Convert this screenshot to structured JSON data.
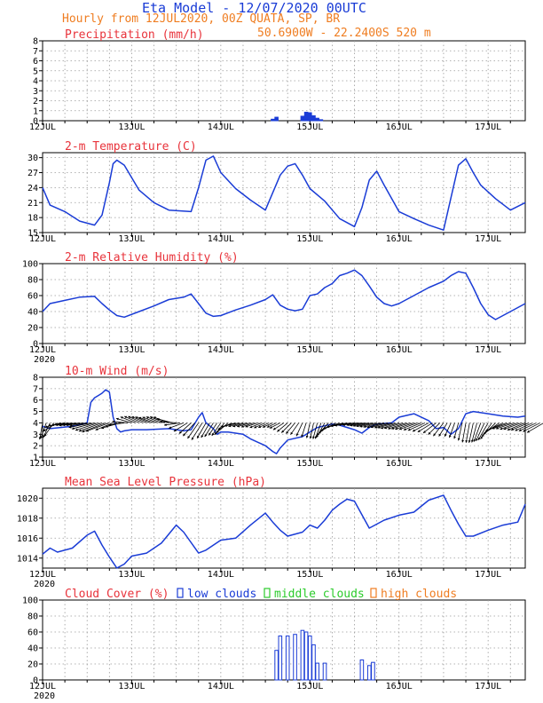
{
  "header": {
    "title": "Eta Model - 12/07/2020 00UTC",
    "subtitle": "Hourly from 12JUL2020, 00Z  QUATA, SP, BR",
    "location": "50.6900W - 22.2400S    520  m"
  },
  "colors": {
    "series": "#1a3cd6",
    "panel_title": "#e8333b",
    "header_orange": "#ef7d21",
    "grid": "#9a9a9a",
    "low_clouds": "#1a3cd6",
    "middle_clouds": "#2bcb2b",
    "high_clouds": "#ef7d21",
    "wind_barb": "#000000"
  },
  "x_axis": {
    "range_hours": [
      0,
      130
    ],
    "tick_hours": [
      0,
      24,
      48,
      72,
      96,
      120
    ],
    "tick_labels": [
      "12JUL",
      "13JUL",
      "14JUL",
      "15JUL",
      "16JUL",
      "17JUL"
    ],
    "year_label": "2020"
  },
  "chart_data": [
    {
      "id": "precip",
      "type": "bar",
      "title": "Precipitation (mm/h)",
      "xlabel": "",
      "ylabel": "Precipitation (mm/h)",
      "ylim": [
        0,
        8
      ],
      "yticks": [
        0,
        1,
        2,
        3,
        4,
        5,
        6,
        7,
        8
      ],
      "year_label": false,
      "series": [
        {
          "name": "precipitation",
          "x": [
            62,
            63,
            70,
            71,
            72,
            73,
            74,
            75
          ],
          "values": [
            0.15,
            0.35,
            0.45,
            0.85,
            0.8,
            0.5,
            0.25,
            0.1
          ]
        }
      ]
    },
    {
      "id": "temp",
      "type": "line",
      "title": "2-m Temperature (C)",
      "ylabel": "2-m Temperature (C)",
      "ylim": [
        15,
        31
      ],
      "yticks": [
        15,
        18,
        21,
        24,
        27,
        30
      ],
      "year_label": false,
      "series": [
        {
          "name": "2-m temperature",
          "x": [
            0,
            2,
            6,
            10,
            14,
            16,
            18,
            19,
            20,
            22,
            26,
            30,
            34,
            40,
            42,
            44,
            46,
            48,
            52,
            56,
            60,
            64,
            66,
            68,
            70,
            72,
            76,
            80,
            84,
            86,
            88,
            90,
            92,
            96,
            100,
            104,
            108,
            110,
            112,
            114,
            116,
            118,
            122,
            126,
            130
          ],
          "values": [
            24.0,
            20.5,
            19.2,
            17.3,
            16.5,
            18.5,
            25.0,
            28.8,
            29.5,
            28.5,
            23.5,
            21.0,
            19.5,
            19.2,
            24.0,
            29.5,
            30.3,
            27.0,
            23.8,
            21.5,
            19.5,
            26.5,
            28.3,
            28.8,
            26.5,
            23.8,
            21.3,
            17.8,
            16.2,
            20.0,
            25.5,
            27.3,
            24.5,
            19.2,
            17.8,
            16.5,
            15.5,
            22.0,
            28.5,
            29.8,
            27.0,
            24.5,
            21.8,
            19.5,
            21.0
          ]
        }
      ]
    },
    {
      "id": "rh",
      "type": "line",
      "title": "2-m Relative Humidity (%)",
      "ylabel": "2-m Relative Humidity (%)",
      "ylim": [
        0,
        100
      ],
      "yticks": [
        0,
        20,
        40,
        60,
        80,
        100
      ],
      "year_label": true,
      "series": [
        {
          "name": "2-m relative humidity",
          "x": [
            0,
            2,
            6,
            10,
            14,
            16,
            18,
            20,
            22,
            26,
            30,
            34,
            38,
            40,
            42,
            44,
            46,
            48,
            52,
            56,
            60,
            62,
            64,
            66,
            68,
            70,
            72,
            74,
            76,
            78,
            80,
            82,
            84,
            86,
            88,
            90,
            92,
            94,
            96,
            100,
            104,
            108,
            110,
            112,
            114,
            116,
            118,
            120,
            122,
            126,
            130
          ],
          "values": [
            40,
            50,
            54,
            58,
            59,
            50,
            42,
            35,
            33,
            40,
            47,
            55,
            58,
            62,
            50,
            38,
            34,
            35,
            42,
            48,
            55,
            61,
            48,
            43,
            41,
            43,
            60,
            62,
            70,
            75,
            85,
            88,
            92,
            85,
            72,
            58,
            50,
            47,
            50,
            60,
            70,
            78,
            85,
            90,
            88,
            70,
            50,
            36,
            30,
            40,
            50
          ]
        }
      ]
    },
    {
      "id": "wind",
      "type": "line",
      "title": "10-m Wind (m/s)",
      "ylabel": "10-m Wind (m/s)",
      "ylim": [
        1,
        8
      ],
      "yticks": [
        1,
        2,
        3,
        4,
        5,
        6,
        7,
        8
      ],
      "year_label": false,
      "barb_heading_deg": [
        190,
        200,
        205,
        215,
        240,
        255,
        260,
        262,
        262,
        261,
        262,
        262,
        260,
        258,
        255,
        252,
        250,
        249,
        250,
        248,
        250,
        255,
        262,
        275,
        286,
        292,
        294,
        294,
        293,
        292,
        290,
        291,
        292,
        292,
        291,
        285,
        275,
        262,
        250,
        238,
        228,
        222,
        215,
        212,
        210,
        210,
        212,
        214,
        215,
        220,
        230,
        245,
        255,
        258,
        256,
        255,
        254,
        252,
        252,
        248,
        246,
        246,
        246,
        245,
        243,
        237,
        230,
        225,
        220,
        215,
        205,
        198,
        192,
        192,
        195,
        200,
        210,
        222,
        232,
        242,
        250,
        255,
        258,
        260,
        262,
        262,
        261,
        260,
        259,
        258,
        257,
        256,
        255,
        255,
        254,
        254,
        253,
        253,
        252,
        252,
        251,
        250,
        248,
        246,
        242,
        238,
        232,
        225,
        218,
        212,
        205,
        200,
        195,
        192,
        190,
        190,
        192,
        195,
        200,
        205,
        210,
        215,
        225,
        235,
        245,
        250,
        252,
        252,
        250,
        250,
        248,
        248,
        246,
        245,
        243,
        240
      ],
      "series": [
        {
          "name": "10-m wind speed",
          "x": [
            0,
            2,
            8,
            12,
            13,
            14,
            15,
            16,
            17,
            18,
            19,
            20,
            21,
            22,
            24,
            28,
            34,
            38,
            40,
            42,
            43,
            44,
            46,
            47,
            48,
            50,
            54,
            56,
            58,
            60,
            62,
            63,
            64,
            66,
            70,
            72,
            74,
            78,
            80,
            84,
            86,
            88,
            90,
            94,
            96,
            100,
            104,
            106,
            108,
            110,
            112,
            114,
            116,
            120,
            124,
            128,
            130
          ],
          "values": [
            3.7,
            3.5,
            3.7,
            4.0,
            5.8,
            6.2,
            6.4,
            6.6,
            6.9,
            6.7,
            4.5,
            3.5,
            3.2,
            3.3,
            3.4,
            3.4,
            3.5,
            3.3,
            3.4,
            4.5,
            4.9,
            4.0,
            3.5,
            3.0,
            3.2,
            3.2,
            3.0,
            2.6,
            2.3,
            2.0,
            1.5,
            1.3,
            1.8,
            2.5,
            2.8,
            3.2,
            3.6,
            3.9,
            3.8,
            3.4,
            3.1,
            3.6,
            3.9,
            4.0,
            4.5,
            4.8,
            4.2,
            3.5,
            3.6,
            3.0,
            3.5,
            4.8,
            5.0,
            4.8,
            4.6,
            4.5,
            4.6
          ]
        }
      ]
    },
    {
      "id": "mslp",
      "type": "line",
      "title": "Mean Sea Level Pressure (hPa)",
      "ylabel": "Mean Sea Level Pressure (hPa)",
      "ylim": [
        1013,
        1021
      ],
      "yticks": [
        1014,
        1016,
        1018,
        1020
      ],
      "year_label": true,
      "series": [
        {
          "name": "mean sea level pressure",
          "x": [
            0,
            2,
            4,
            8,
            12,
            14,
            16,
            18,
            20,
            22,
            24,
            28,
            32,
            36,
            38,
            42,
            44,
            48,
            52,
            56,
            60,
            62,
            64,
            66,
            70,
            72,
            74,
            76,
            78,
            80,
            82,
            84,
            88,
            92,
            96,
            100,
            104,
            108,
            110,
            112,
            114,
            116,
            120,
            124,
            128,
            130
          ],
          "values": [
            1014.4,
            1015.0,
            1014.6,
            1015.0,
            1016.3,
            1016.7,
            1015.3,
            1014.1,
            1013.0,
            1013.4,
            1014.2,
            1014.5,
            1015.5,
            1017.3,
            1016.6,
            1014.5,
            1014.8,
            1015.8,
            1016.0,
            1017.3,
            1018.5,
            1017.6,
            1016.8,
            1016.2,
            1016.6,
            1017.3,
            1017.0,
            1017.8,
            1018.8,
            1019.4,
            1019.9,
            1019.7,
            1017.0,
            1017.8,
            1018.3,
            1018.6,
            1019.8,
            1020.3,
            1018.8,
            1017.4,
            1016.2,
            1016.2,
            1016.8,
            1017.3,
            1017.6,
            1019.4
          ]
        }
      ]
    },
    {
      "id": "cloud",
      "type": "bar",
      "title": "Cloud Cover (%)",
      "legend": [
        "low clouds",
        "middle clouds",
        "high clouds"
      ],
      "ylabel": "Cloud Cover (%)",
      "ylim": [
        0,
        100
      ],
      "yticks": [
        0,
        20,
        40,
        60,
        80,
        100
      ],
      "year_label": true,
      "series": [
        {
          "name": "low clouds",
          "x": [
            63,
            64,
            66,
            68,
            70,
            71,
            72,
            73,
            74,
            76,
            86,
            88,
            89
          ],
          "values": [
            37,
            55,
            55,
            57,
            62,
            60,
            55,
            44,
            21,
            21,
            25,
            18,
            22
          ]
        },
        {
          "name": "middle clouds",
          "x": [],
          "values": []
        },
        {
          "name": "high clouds",
          "x": [],
          "values": []
        }
      ]
    }
  ]
}
